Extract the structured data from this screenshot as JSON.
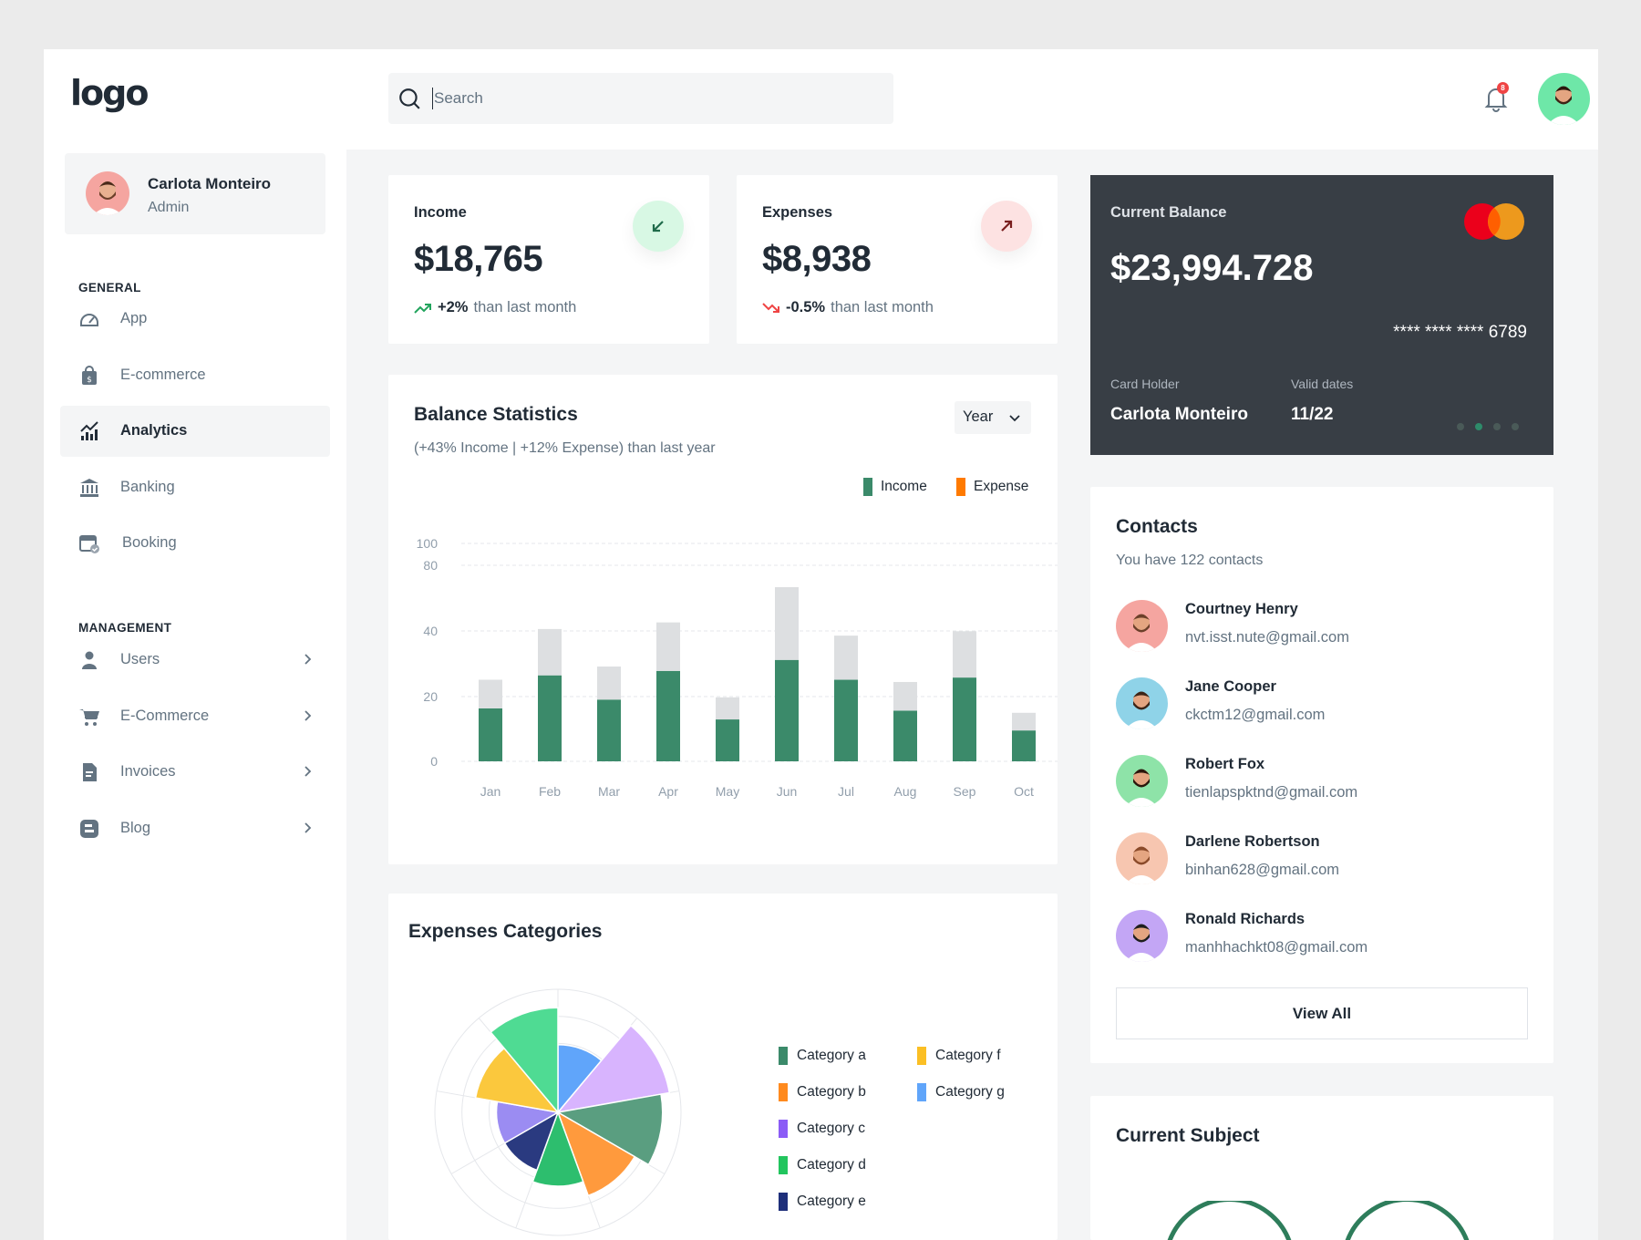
{
  "logo": "logo",
  "user": {
    "name": "Carlota Monteiro",
    "role": "Admin"
  },
  "sidebar": {
    "general_label": "GENERAL",
    "management_label": "MANAGEMENT",
    "general": [
      {
        "label": "App",
        "icon": "dashboard-icon"
      },
      {
        "label": "E-commerce",
        "icon": "shopping-bag-icon"
      },
      {
        "label": "Analytics",
        "icon": "analytics-icon",
        "active": true
      },
      {
        "label": "Banking",
        "icon": "bank-icon"
      },
      {
        "label": "Booking",
        "icon": "calendar-check-icon"
      }
    ],
    "management": [
      {
        "label": "Users",
        "icon": "user-icon"
      },
      {
        "label": "E-Commerce",
        "icon": "cart-icon"
      },
      {
        "label": "Invoices",
        "icon": "invoice-icon"
      },
      {
        "label": "Blog",
        "icon": "blog-icon"
      }
    ]
  },
  "search": {
    "placeholder": "Search"
  },
  "notifications": {
    "count": "8"
  },
  "income": {
    "title": "Income",
    "value": "$18,765",
    "change": "+2%",
    "note": "than last month"
  },
  "expenses": {
    "title": "Expenses",
    "value": "$8,938",
    "change": "-0.5%",
    "note": "than last month"
  },
  "balance": {
    "title": "Current Balance",
    "value": "$23,994.728",
    "card_number": "**** **** **** 6789",
    "holder_label": "Card Holder",
    "holder": "Carlota Monteiro",
    "valid_label": "Valid dates",
    "valid": "11/22"
  },
  "balance_stats": {
    "title": "Balance Statistics",
    "subtitle": "(+43% Income | +12% Expense) than last year",
    "period": "Year"
  },
  "expenses_categories": {
    "title": "Expenses Categories"
  },
  "contacts": {
    "title": "Contacts",
    "subtitle": "You have 122 contacts",
    "view_all": "View All",
    "list": [
      {
        "name": "Courtney Henry",
        "email": "nvt.isst.nute@gmail.com",
        "avatar_bg": "#f5a5a0"
      },
      {
        "name": "Jane Cooper",
        "email": "ckctm12@gmail.com",
        "avatar_bg": "#8fd3e8"
      },
      {
        "name": "Robert Fox",
        "email": "tienlapspktnd@gmail.com",
        "avatar_bg": "#8ee3a8"
      },
      {
        "name": "Darlene Robertson",
        "email": "binhan628@gmail.com",
        "avatar_bg": "#f7c6b0"
      },
      {
        "name": "Ronald Richards",
        "email": "manhhachkt08@gmail.com",
        "avatar_bg": "#c3a6f5"
      }
    ]
  },
  "current_subject": {
    "title": "Current Subject"
  },
  "colors": {
    "income": "#3b8a6a",
    "expense_bar": "#dddfe1",
    "expense_legend": "#ff7a00",
    "card": "#383e45"
  },
  "chart_data": [
    {
      "type": "bar",
      "categories": [
        "Jan",
        "Feb",
        "Mar",
        "Apr",
        "May",
        "Jun",
        "Jul",
        "Aug",
        "Sep",
        "Oct"
      ],
      "series": [
        {
          "name": "Income",
          "values": [
            24,
            39,
            28,
            41,
            19,
            46,
            37,
            23,
            38,
            14
          ]
        },
        {
          "name": "Expense",
          "values": [
            13,
            21,
            15,
            22,
            10,
            33,
            20,
            13,
            21,
            8
          ]
        }
      ],
      "stacked": true,
      "yticks": [
        "0",
        "20",
        "40",
        "80",
        "100"
      ],
      "ylim": [
        0,
        100
      ],
      "legend": "top-right",
      "grid": true
    },
    {
      "type": "pie",
      "subtype": "polar-area",
      "categories": [
        "Category a",
        "Category b",
        "Category c",
        "Category d",
        "Category e",
        "Category f",
        "Category g"
      ],
      "colors": [
        "#3b8a6a",
        "#ff8a1e",
        "#8b5cf6",
        "#22c55e",
        "#1e2f7a",
        "#fbbf24",
        "#60a5fa"
      ],
      "slices": [
        {
          "label": "",
          "color": "#60a5fa",
          "value": 0.55
        },
        {
          "label": "",
          "color": "#d8b4fe",
          "value": 0.92
        },
        {
          "label": "",
          "color": "#5a9e80",
          "value": 0.85
        },
        {
          "label": "",
          "color": "#ff9a3d",
          "value": 0.72
        },
        {
          "label": "",
          "color": "#2dbe6e",
          "value": 0.6
        },
        {
          "label": "",
          "color": "#2a3a80",
          "value": 0.5
        },
        {
          "label": "",
          "color": "#9b8cf2",
          "value": 0.5
        },
        {
          "label": "",
          "color": "#fbc83d",
          "value": 0.68
        },
        {
          "label": "",
          "color": "#4fdb93",
          "value": 0.85
        }
      ],
      "legend": "right"
    }
  ]
}
